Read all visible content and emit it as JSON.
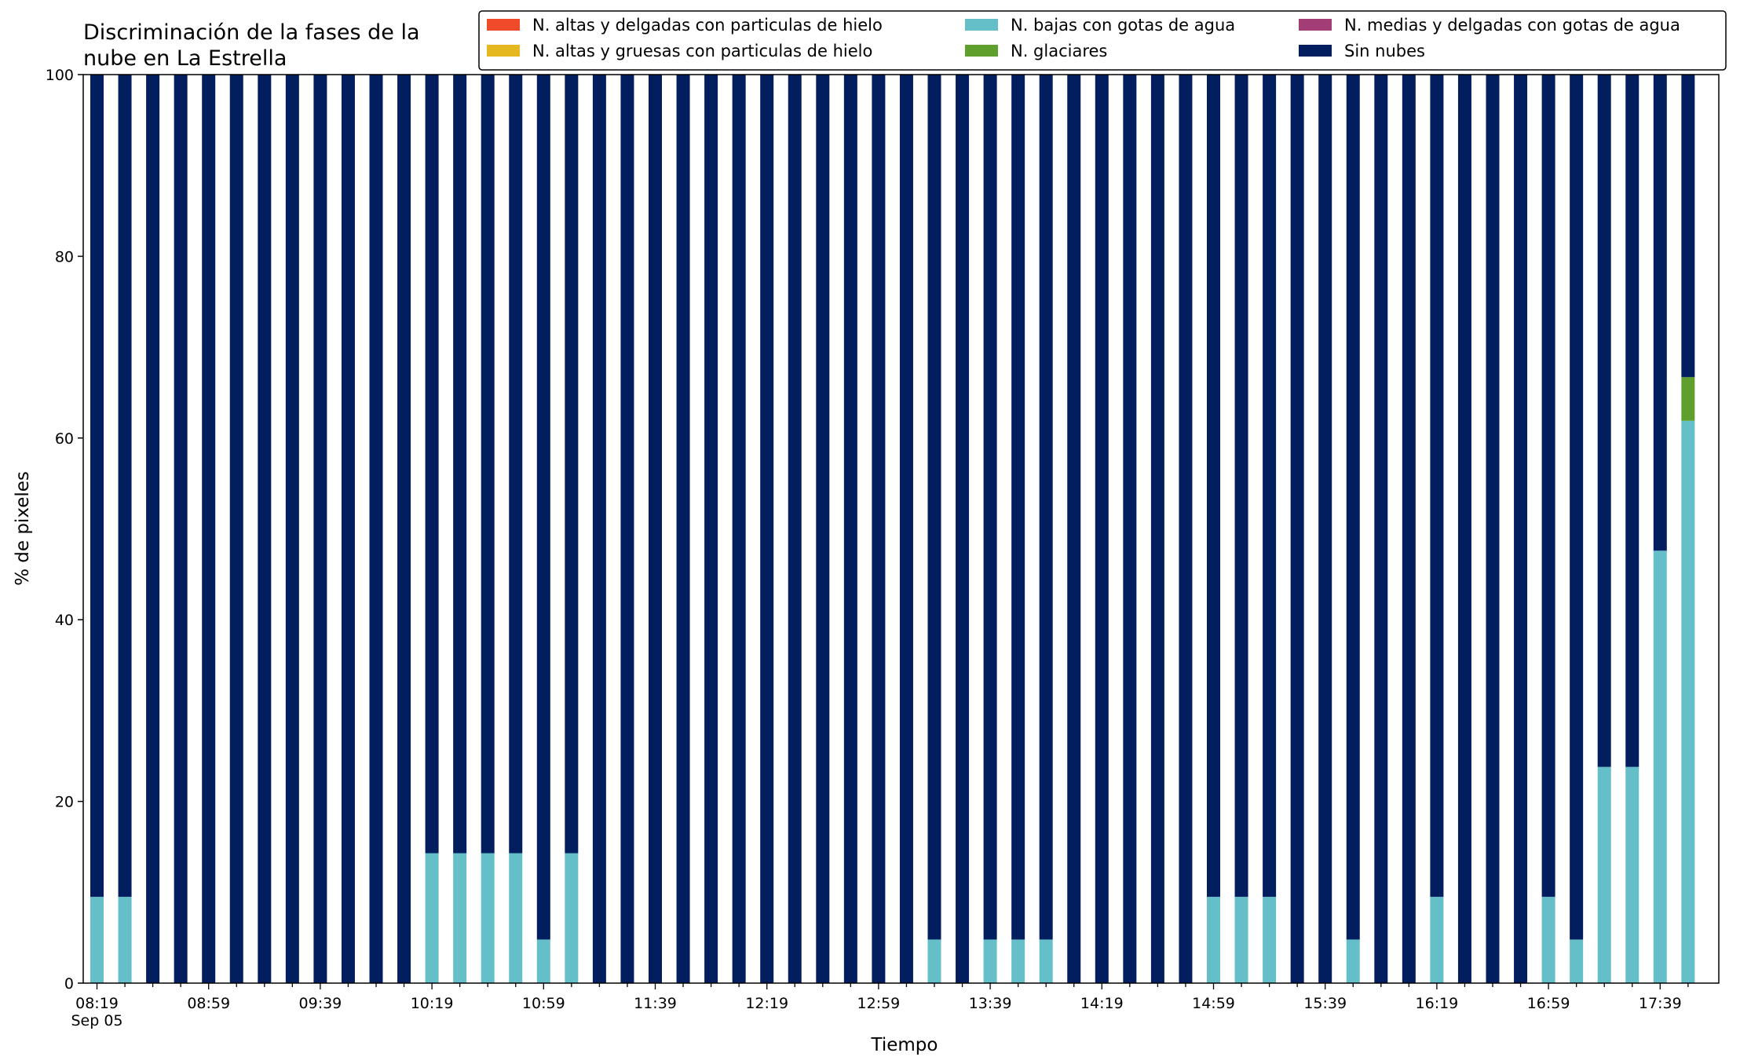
{
  "chart_data": {
    "type": "bar",
    "stacked": true,
    "title": [
      "Discriminación de la fases de la",
      "nube en La Estrella"
    ],
    "xlabel": "Tiempo",
    "ylabel": "% de pixeles",
    "ylim": [
      0,
      100
    ],
    "yticks": [
      0,
      20,
      40,
      60,
      80,
      100
    ],
    "x_tick_labels": [
      "08:19\nSep 05",
      "08:59",
      "09:39",
      "10:19",
      "10:59",
      "11:39",
      "12:19",
      "12:59",
      "13:39",
      "14:19",
      "14:59",
      "15:39",
      "16:19",
      "16:59",
      "17:39"
    ],
    "x": [
      "08:19",
      "08:29",
      "08:39",
      "08:49",
      "08:59",
      "09:09",
      "09:19",
      "09:29",
      "09:39",
      "09:49",
      "09:59",
      "10:09",
      "10:19",
      "10:29",
      "10:39",
      "10:49",
      "10:59",
      "11:09",
      "11:19",
      "11:29",
      "11:39",
      "11:49",
      "11:59",
      "12:09",
      "12:19",
      "12:29",
      "12:39",
      "12:49",
      "12:59",
      "13:09",
      "13:19",
      "13:29",
      "13:39",
      "13:49",
      "13:59",
      "14:09",
      "14:19",
      "14:29",
      "14:39",
      "14:49",
      "14:59",
      "15:09",
      "15:19",
      "15:29",
      "15:39",
      "15:49",
      "15:59",
      "16:09",
      "16:19",
      "16:29",
      "16:39",
      "16:49",
      "16:59",
      "17:09",
      "17:19",
      "17:29",
      "17:39",
      "17:49"
    ],
    "legend_location": "top-right",
    "legend_columns": 3,
    "series": [
      {
        "name": "N. altas y delgadas con particulas de hielo",
        "color": "#ef4a2a",
        "values": [
          0,
          0,
          0,
          0,
          0,
          0,
          0,
          0,
          0,
          0,
          0,
          0,
          0,
          0,
          0,
          0,
          0,
          0,
          0,
          0,
          0,
          0,
          0,
          0,
          0,
          0,
          0,
          0,
          0,
          0,
          0,
          0,
          0,
          0,
          0,
          0,
          0,
          0,
          0,
          0,
          0,
          0,
          0,
          0,
          0,
          0,
          0,
          0,
          0,
          0,
          0,
          0,
          0,
          0,
          0,
          0,
          0,
          0
        ]
      },
      {
        "name": "N. altas y gruesas con particulas de hielo",
        "color": "#e6b820",
        "values": [
          0,
          0,
          0,
          0,
          0,
          0,
          0,
          0,
          0,
          0,
          0,
          0,
          0,
          0,
          0,
          0,
          0,
          0,
          0,
          0,
          0,
          0,
          0,
          0,
          0,
          0,
          0,
          0,
          0,
          0,
          0,
          0,
          0,
          0,
          0,
          0,
          0,
          0,
          0,
          0,
          0,
          0,
          0,
          0,
          0,
          0,
          0,
          0,
          0,
          0,
          0,
          0,
          0,
          0,
          0,
          0,
          0,
          0
        ]
      },
      {
        "name": "N. bajas con gotas de agua",
        "color": "#64bfc9",
        "values": [
          9.5,
          9.5,
          0,
          0,
          0,
          0,
          0,
          0,
          0,
          0,
          0,
          0,
          14.3,
          14.3,
          14.3,
          14.3,
          4.8,
          14.3,
          0,
          0,
          0,
          0,
          0,
          0,
          0,
          0,
          0,
          0,
          0,
          0,
          4.8,
          0,
          4.8,
          4.8,
          4.8,
          0,
          0,
          0,
          0,
          0,
          9.5,
          9.5,
          9.5,
          0,
          0,
          4.8,
          0,
          0,
          9.5,
          0,
          0,
          0,
          9.5,
          4.8,
          23.8,
          23.8,
          47.6,
          61.9
        ]
      },
      {
        "name": "N. glaciares",
        "color": "#5f9f2e",
        "values": [
          0,
          0,
          0,
          0,
          0,
          0,
          0,
          0,
          0,
          0,
          0,
          0,
          0,
          0,
          0,
          0,
          0,
          0,
          0,
          0,
          0,
          0,
          0,
          0,
          0,
          0,
          0,
          0,
          0,
          0,
          0,
          0,
          0,
          0,
          0,
          0,
          0,
          0,
          0,
          0,
          0,
          0,
          0,
          0,
          0,
          0,
          0,
          0,
          0,
          0,
          0,
          0,
          0,
          0,
          0,
          0,
          0,
          4.8
        ]
      },
      {
        "name": "N. medias y delgadas con gotas de agua",
        "color": "#a23e75",
        "values": [
          0,
          0,
          0,
          0,
          0,
          0,
          0,
          0,
          0,
          0,
          0,
          0,
          0,
          0,
          0,
          0,
          0,
          0,
          0,
          0,
          0,
          0,
          0,
          0,
          0,
          0,
          0,
          0,
          0,
          0,
          0,
          0,
          0,
          0,
          0,
          0,
          0,
          0,
          0,
          0,
          0,
          0,
          0,
          0,
          0,
          0,
          0,
          0,
          0,
          0,
          0,
          0,
          0,
          0,
          0,
          0,
          0,
          0
        ]
      },
      {
        "name": "Sin nubes",
        "color": "#021e5f",
        "values": [
          90.5,
          90.5,
          100,
          100,
          100,
          100,
          100,
          100,
          100,
          100,
          100,
          100,
          85.7,
          85.7,
          85.7,
          85.7,
          95.2,
          85.7,
          100,
          100,
          100,
          100,
          100,
          100,
          100,
          100,
          100,
          100,
          100,
          100,
          95.2,
          100,
          95.2,
          95.2,
          95.2,
          100,
          100,
          100,
          100,
          100,
          90.5,
          90.5,
          90.5,
          100,
          100,
          95.2,
          100,
          100,
          90.5,
          100,
          100,
          100,
          90.5,
          95.2,
          76.2,
          76.2,
          52.4,
          33.3
        ]
      }
    ]
  }
}
